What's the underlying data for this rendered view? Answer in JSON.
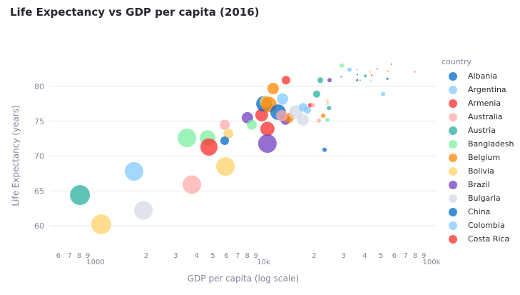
{
  "chart_data": {
    "type": "scatter",
    "title": "Life Expectancy vs GDP per capita (2016)",
    "xlabel": "GDP per capita (log scale)",
    "ylabel": "Life Expectancy (years)",
    "x_scale": "log",
    "xlim": [
      570,
      100000
    ],
    "ylim": [
      56.5,
      84.3
    ],
    "grid": {
      "x": false,
      "y": true
    },
    "legend_position": "right",
    "legend_title": "country",
    "legend": [
      {
        "name": "Albania",
        "color": "#0068c9"
      },
      {
        "name": "Argentina",
        "color": "#83c9ff"
      },
      {
        "name": "Armenia",
        "color": "#ff2b2b"
      },
      {
        "name": "Australia",
        "color": "#ffabab"
      },
      {
        "name": "Austria",
        "color": "#29b09d"
      },
      {
        "name": "Bangladesh",
        "color": "#7defa1"
      },
      {
        "name": "Belgium",
        "color": "#ff8700"
      },
      {
        "name": "Bolivia",
        "color": "#ffd16a"
      },
      {
        "name": "Brazil",
        "color": "#6d3fc0"
      },
      {
        "name": "Bulgaria",
        "color": "#d5dae5"
      },
      {
        "name": "China",
        "color": "#0068c9"
      },
      {
        "name": "Colombia",
        "color": "#83c9ff"
      },
      {
        "name": "Costa Rica",
        "color": "#ff2b2b"
      }
    ],
    "y_ticks": [
      "60",
      "65",
      "70",
      "75",
      "80"
    ],
    "x_ticks": [
      {
        "v": 600,
        "t": "6"
      },
      {
        "v": 700,
        "t": "7"
      },
      {
        "v": 800,
        "t": "8"
      },
      {
        "v": 900,
        "t": "9"
      },
      {
        "v": 1000,
        "t": "1000",
        "major": true
      },
      {
        "v": 2000,
        "t": "2"
      },
      {
        "v": 3000,
        "t": "3"
      },
      {
        "v": 4000,
        "t": "4"
      },
      {
        "v": 5000,
        "t": "5"
      },
      {
        "v": 6000,
        "t": "6"
      },
      {
        "v": 7000,
        "t": "7"
      },
      {
        "v": 8000,
        "t": "8"
      },
      {
        "v": 9000,
        "t": "9"
      },
      {
        "v": 10000,
        "t": "10k",
        "major": true
      },
      {
        "v": 20000,
        "t": "2"
      },
      {
        "v": 30000,
        "t": "3"
      },
      {
        "v": 40000,
        "t": "4"
      },
      {
        "v": 50000,
        "t": "5"
      },
      {
        "v": 60000,
        "t": "6"
      },
      {
        "v": 70000,
        "t": "7"
      },
      {
        "v": 80000,
        "t": "8"
      },
      {
        "v": 90000,
        "t": "9"
      },
      {
        "v": 100000,
        "t": "100k",
        "major": true
      }
    ],
    "points": [
      {
        "x": 807,
        "y": 64.4,
        "s": 1.0,
        "c": "#29b09d"
      },
      {
        "x": 1081,
        "y": 60.2,
        "s": 1.0,
        "c": "#ffd16a"
      },
      {
        "x": 1694,
        "y": 67.8,
        "s": 0.93,
        "c": "#83c9ff"
      },
      {
        "x": 1926,
        "y": 62.2,
        "s": 0.93,
        "c": "#d5dae5"
      },
      {
        "x": 3742,
        "y": 65.9,
        "s": 0.93,
        "c": "#ffabab"
      },
      {
        "x": 3499,
        "y": 72.6,
        "s": 0.93,
        "c": "#7defa1"
      },
      {
        "x": 4645,
        "y": 72.6,
        "s": 0.78,
        "c": "#7defa1"
      },
      {
        "x": 4730,
        "y": 71.3,
        "s": 0.86,
        "c": "#ff2b2b"
      },
      {
        "x": 5930,
        "y": 68.5,
        "s": 0.93,
        "c": "#ffd16a"
      },
      {
        "x": 5870,
        "y": 74.5,
        "s": 0.5,
        "c": "#ffabab"
      },
      {
        "x": 6170,
        "y": 73.2,
        "s": 0.5,
        "c": "#ffd16a"
      },
      {
        "x": 5870,
        "y": 72.2,
        "s": 0.43,
        "c": "#0068c9"
      },
      {
        "x": 8015,
        "y": 75.5,
        "s": 0.57,
        "c": "#6d3fc0"
      },
      {
        "x": 8510,
        "y": 74.5,
        "s": 0.5,
        "c": "#7defa1"
      },
      {
        "x": 9750,
        "y": 75.9,
        "s": 0.64,
        "c": "#ff2b2b"
      },
      {
        "x": 10540,
        "y": 73.9,
        "s": 0.71,
        "c": "#ff2b2b"
      },
      {
        "x": 10540,
        "y": 71.8,
        "s": 0.93,
        "c": "#6d3fc0"
      },
      {
        "x": 10050,
        "y": 77.5,
        "s": 0.78,
        "c": "#0068c9"
      },
      {
        "x": 10300,
        "y": 77.8,
        "s": 0.6,
        "c": "#ffd16a"
      },
      {
        "x": 10760,
        "y": 77.4,
        "s": 0.78,
        "c": "#ff8700"
      },
      {
        "x": 11400,
        "y": 79.7,
        "s": 0.57,
        "c": "#ff8700"
      },
      {
        "x": 12960,
        "y": 78.2,
        "s": 0.57,
        "c": "#83c9ff"
      },
      {
        "x": 13600,
        "y": 80.9,
        "s": 0.43,
        "c": "#ff2b2b"
      },
      {
        "x": 12210,
        "y": 76.3,
        "s": 0.78,
        "c": "#0068c9"
      },
      {
        "x": 13490,
        "y": 75.2,
        "s": 0.5,
        "c": "#6d3fc0"
      },
      {
        "x": 14150,
        "y": 75.5,
        "s": 0.5,
        "c": "#ff8700"
      },
      {
        "x": 12820,
        "y": 75.8,
        "s": 0.57,
        "c": "#ffabab"
      },
      {
        "x": 15600,
        "y": 76.3,
        "s": 0.71,
        "c": "#d5dae5"
      },
      {
        "x": 17200,
        "y": 75.2,
        "s": 0.57,
        "c": "#d5dae5"
      },
      {
        "x": 17200,
        "y": 77.0,
        "s": 0.43,
        "c": "#83c9ff"
      },
      {
        "x": 18240,
        "y": 76.6,
        "s": 0.36,
        "c": "#83c9ff"
      },
      {
        "x": 18970,
        "y": 77.3,
        "s": 0.22,
        "c": "#ff2b2b"
      },
      {
        "x": 19720,
        "y": 77.3,
        "s": 0.22,
        "c": "#ffabab"
      },
      {
        "x": 20700,
        "y": 78.9,
        "s": 0.36,
        "c": "#29b09d"
      },
      {
        "x": 21770,
        "y": 80.9,
        "s": 0.29,
        "c": "#29b09d"
      },
      {
        "x": 24720,
        "y": 80.9,
        "s": 0.22,
        "c": "#6d3fc0"
      },
      {
        "x": 24000,
        "y": 77.9,
        "s": 0.15,
        "c": "#ffd16a"
      },
      {
        "x": 24000,
        "y": 77.5,
        "s": 0.15,
        "c": "#d5dae5"
      },
      {
        "x": 24500,
        "y": 76.9,
        "s": 0.22,
        "c": "#29b09d"
      },
      {
        "x": 22660,
        "y": 75.8,
        "s": 0.22,
        "c": "#ff8700"
      },
      {
        "x": 21350,
        "y": 75.1,
        "s": 0.22,
        "c": "#ffabab"
      },
      {
        "x": 24000,
        "y": 75.2,
        "s": 0.22,
        "c": "#7defa1"
      },
      {
        "x": 23070,
        "y": 70.9,
        "s": 0.22,
        "c": "#0068c9"
      },
      {
        "x": 29170,
        "y": 83.0,
        "s": 0.22,
        "c": "#7defa1"
      },
      {
        "x": 32500,
        "y": 82.4,
        "s": 0.22,
        "c": "#83c9ff"
      },
      {
        "x": 29000,
        "y": 81.4,
        "s": 0.08,
        "c": "#6d3fc0"
      },
      {
        "x": 36100,
        "y": 82.4,
        "s": 0.08,
        "c": "#83c9ff"
      },
      {
        "x": 36100,
        "y": 81.7,
        "s": 0.08,
        "c": "#0068c9"
      },
      {
        "x": 36100,
        "y": 80.9,
        "s": 0.11,
        "c": "#0068c9"
      },
      {
        "x": 37600,
        "y": 80.9,
        "s": 0.08,
        "c": "#ff8700"
      },
      {
        "x": 40300,
        "y": 81.5,
        "s": 0.15,
        "c": "#29b09d"
      },
      {
        "x": 43100,
        "y": 82.1,
        "s": 0.11,
        "c": "#ffd16a"
      },
      {
        "x": 44000,
        "y": 81.6,
        "s": 0.08,
        "c": "#ff2b2b"
      },
      {
        "x": 43500,
        "y": 80.8,
        "s": 0.08,
        "c": "#7defa1"
      },
      {
        "x": 47500,
        "y": 82.5,
        "s": 0.11,
        "c": "#ffabab"
      },
      {
        "x": 57800,
        "y": 83.2,
        "s": 0.07,
        "c": "#6d3fc0"
      },
      {
        "x": 55100,
        "y": 82.2,
        "s": 0.08,
        "c": "#ff8700"
      },
      {
        "x": 54600,
        "y": 81.1,
        "s": 0.11,
        "c": "#0068c9"
      },
      {
        "x": 79800,
        "y": 82.1,
        "s": 0.11,
        "c": "#ffabab"
      },
      {
        "x": 51400,
        "y": 78.9,
        "s": 0.22,
        "c": "#83c9ff"
      }
    ]
  }
}
